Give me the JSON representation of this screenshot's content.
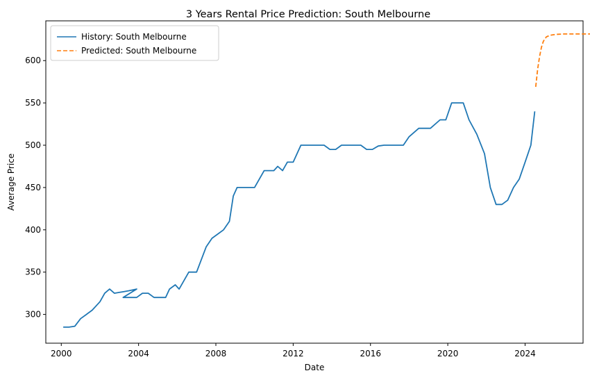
{
  "chart_data": {
    "type": "line",
    "title": "3 Years Rental Price Prediction: South Melbourne",
    "xlabel": "Date",
    "ylabel": "Average Price",
    "xlim": [
      1999.2,
      2027.0
    ],
    "ylim": [
      266,
      647
    ],
    "x_ticks": [
      2000,
      2004,
      2008,
      2012,
      2016,
      2020,
      2024
    ],
    "x_tick_labels": [
      "2000",
      "2004",
      "2008",
      "2012",
      "2016",
      "2020",
      "2024"
    ],
    "y_ticks": [
      300,
      350,
      400,
      450,
      500,
      550,
      600
    ],
    "y_tick_labels": [
      "300",
      "350",
      "400",
      "450",
      "500",
      "550",
      "600"
    ],
    "legend_position": "top-left",
    "grid": false,
    "series": [
      {
        "name": "History: South Melbourne",
        "color": "#1f77b4",
        "style": "solid",
        "points": [
          [
            2000.1,
            285
          ],
          [
            2000.4,
            285
          ],
          [
            2000.7,
            286
          ],
          [
            2001.0,
            295
          ],
          [
            2001.3,
            300
          ],
          [
            2001.6,
            305
          ],
          [
            2002.0,
            315
          ],
          [
            2002.25,
            325
          ],
          [
            2002.5,
            330
          ],
          [
            2002.75,
            325
          ],
          [
            2003.0,
            326
          ],
          [
            2003.25,
            327
          ],
          [
            2003.5,
            328
          ],
          [
            2003.9,
            330
          ],
          [
            2003.2,
            320
          ],
          [
            2003.9,
            320
          ],
          [
            2004.2,
            325
          ],
          [
            2004.5,
            325
          ],
          [
            2004.8,
            320
          ],
          [
            2005.2,
            320
          ],
          [
            2005.4,
            320
          ],
          [
            2005.6,
            330
          ],
          [
            2005.9,
            335
          ],
          [
            2006.1,
            330
          ],
          [
            2006.6,
            350
          ],
          [
            2007.0,
            350
          ],
          [
            2007.5,
            380
          ],
          [
            2007.8,
            390
          ],
          [
            2008.1,
            395
          ],
          [
            2008.4,
            400
          ],
          [
            2008.7,
            410
          ],
          [
            2008.9,
            440
          ],
          [
            2009.1,
            450
          ],
          [
            2009.5,
            450
          ],
          [
            2010.0,
            450
          ],
          [
            2010.5,
            470
          ],
          [
            2011.0,
            470
          ],
          [
            2011.2,
            475
          ],
          [
            2011.45,
            470
          ],
          [
            2011.7,
            480
          ],
          [
            2012.0,
            480
          ],
          [
            2012.4,
            500
          ],
          [
            2013.0,
            500
          ],
          [
            2013.6,
            500
          ],
          [
            2013.9,
            495
          ],
          [
            2014.2,
            495
          ],
          [
            2014.5,
            500
          ],
          [
            2015.0,
            500
          ],
          [
            2015.5,
            500
          ],
          [
            2015.8,
            495
          ],
          [
            2016.1,
            495
          ],
          [
            2016.4,
            499
          ],
          [
            2016.7,
            500
          ],
          [
            2017.2,
            500
          ],
          [
            2017.7,
            500
          ],
          [
            2018.0,
            510
          ],
          [
            2018.5,
            520
          ],
          [
            2019.1,
            520
          ],
          [
            2019.6,
            530
          ],
          [
            2019.9,
            530
          ],
          [
            2020.2,
            550
          ],
          [
            2020.8,
            550
          ],
          [
            2021.1,
            530
          ],
          [
            2021.5,
            513
          ],
          [
            2021.9,
            490
          ],
          [
            2022.2,
            450
          ],
          [
            2022.5,
            430
          ],
          [
            2022.8,
            430
          ],
          [
            2023.1,
            435
          ],
          [
            2023.4,
            450
          ],
          [
            2023.7,
            460
          ],
          [
            2024.0,
            480
          ],
          [
            2024.3,
            500
          ],
          [
            2024.5,
            540
          ]
        ]
      },
      {
        "name": "Predicted: South Melbourne",
        "color": "#ff7f0e",
        "style": "dashed",
        "points": [
          [
            2024.55,
            569
          ],
          [
            2024.65,
            590
          ],
          [
            2024.75,
            605
          ],
          [
            2024.85,
            616
          ],
          [
            2024.95,
            623
          ],
          [
            2025.1,
            628
          ],
          [
            2025.3,
            630
          ],
          [
            2025.6,
            631
          ],
          [
            2026.0,
            631.5
          ],
          [
            2026.5,
            631.5
          ],
          [
            2027.2,
            631.5
          ],
          [
            2028.0,
            631.5
          ],
          [
            2028.7,
            631.5
          ]
        ]
      }
    ]
  }
}
